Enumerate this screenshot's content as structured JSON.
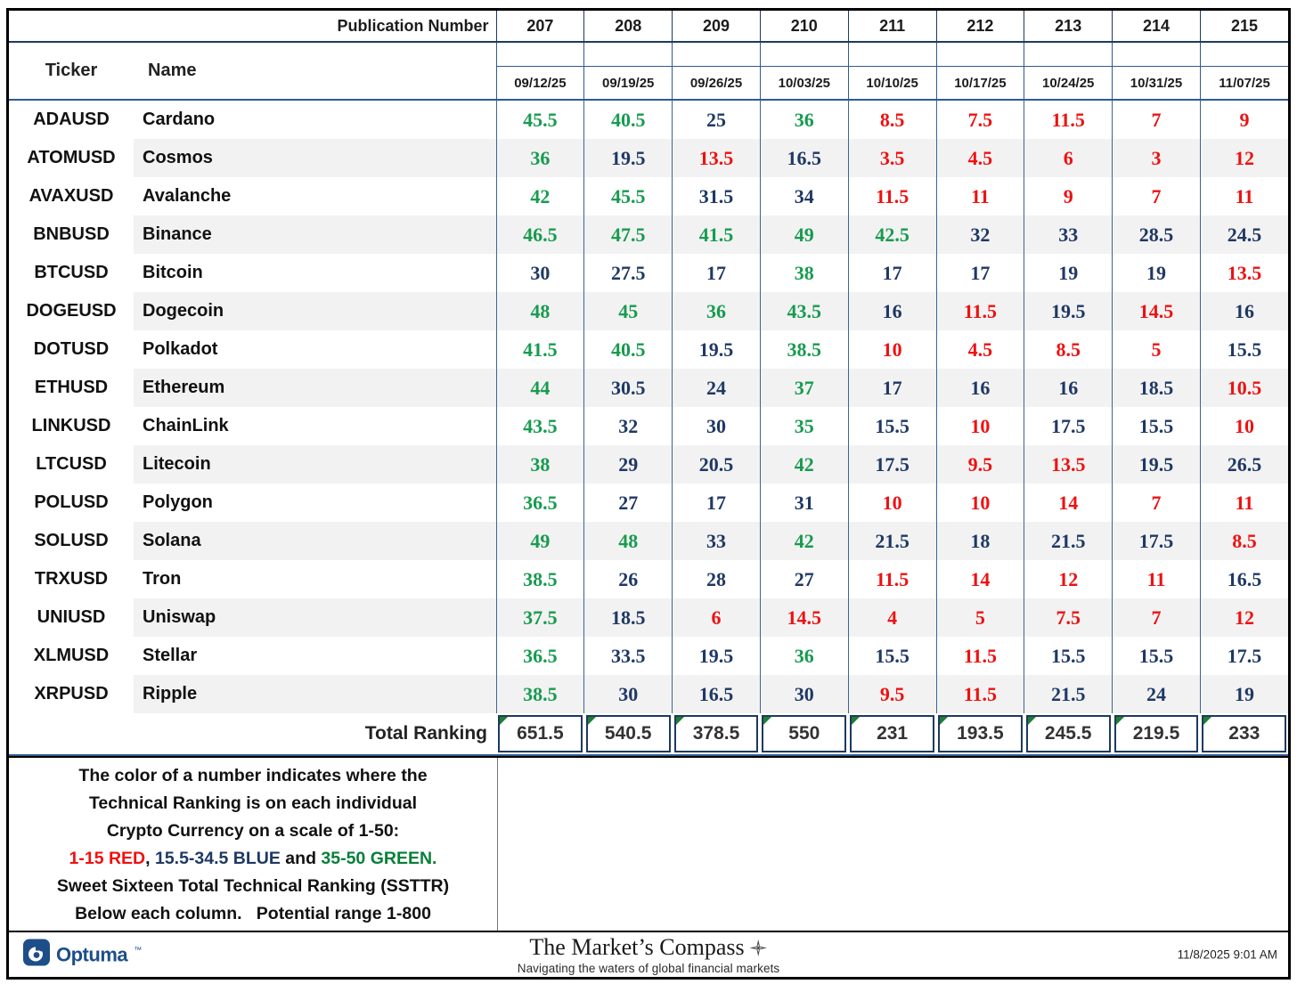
{
  "header": {
    "publication_label": "Publication Number",
    "ticker_label": "Ticker",
    "name_label": "Name",
    "publications": [
      "207",
      "208",
      "209",
      "210",
      "211",
      "212",
      "213",
      "214",
      "215"
    ],
    "dates": [
      "09/12/25",
      "09/19/25",
      "09/26/25",
      "10/03/25",
      "10/10/25",
      "10/17/25",
      "10/24/25",
      "10/31/25",
      "11/07/25"
    ]
  },
  "rows": [
    {
      "ticker": "ADAUSD",
      "name": "Cardano",
      "values": [
        45.5,
        40.5,
        25,
        36,
        8.5,
        7.5,
        11.5,
        7,
        9
      ]
    },
    {
      "ticker": "ATOMUSD",
      "name": "Cosmos",
      "values": [
        36,
        19.5,
        13.5,
        16.5,
        3.5,
        4.5,
        6,
        3,
        12
      ]
    },
    {
      "ticker": "AVAXUSD",
      "name": "Avalanche",
      "values": [
        42,
        45.5,
        31.5,
        34,
        11.5,
        11,
        9,
        7,
        11
      ]
    },
    {
      "ticker": "BNBUSD",
      "name": "Binance",
      "values": [
        46.5,
        47.5,
        41.5,
        49,
        42.5,
        32,
        33,
        28.5,
        24.5
      ]
    },
    {
      "ticker": "BTCUSD",
      "name": "Bitcoin",
      "values": [
        30,
        27.5,
        17,
        38,
        17,
        17,
        19,
        19,
        13.5
      ]
    },
    {
      "ticker": "DOGEUSD",
      "name": "Dogecoin",
      "values": [
        48,
        45,
        36,
        43.5,
        16,
        11.5,
        19.5,
        14.5,
        16
      ]
    },
    {
      "ticker": "DOTUSD",
      "name": "Polkadot",
      "values": [
        41.5,
        40.5,
        19.5,
        38.5,
        10,
        4.5,
        8.5,
        5,
        15.5
      ]
    },
    {
      "ticker": "ETHUSD",
      "name": "Ethereum",
      "values": [
        44,
        30.5,
        24,
        37,
        17,
        16,
        16,
        18.5,
        10.5
      ]
    },
    {
      "ticker": "LINKUSD",
      "name": "ChainLink",
      "values": [
        43.5,
        32,
        30,
        35,
        15.5,
        10,
        17.5,
        15.5,
        10
      ]
    },
    {
      "ticker": "LTCUSD",
      "name": "Litecoin",
      "values": [
        38,
        29,
        20.5,
        42,
        17.5,
        9.5,
        13.5,
        19.5,
        26.5
      ]
    },
    {
      "ticker": "POLUSD",
      "name": "Polygon",
      "values": [
        36.5,
        27,
        17,
        31,
        10,
        10,
        14,
        7,
        11
      ]
    },
    {
      "ticker": "SOLUSD",
      "name": "Solana",
      "values": [
        49,
        48,
        33,
        42,
        21.5,
        18,
        21.5,
        17.5,
        8.5
      ]
    },
    {
      "ticker": "TRXUSD",
      "name": "Tron",
      "values": [
        38.5,
        26,
        28,
        27,
        11.5,
        14,
        12,
        11,
        16.5
      ]
    },
    {
      "ticker": "UNIUSD",
      "name": "Uniswap",
      "values": [
        37.5,
        18.5,
        6,
        14.5,
        4,
        5,
        7.5,
        7,
        12
      ]
    },
    {
      "ticker": "XLMUSD",
      "name": "Stellar",
      "values": [
        36.5,
        33.5,
        19.5,
        36,
        15.5,
        11.5,
        15.5,
        15.5,
        17.5
      ]
    },
    {
      "ticker": "XRPUSD",
      "name": "Ripple",
      "values": [
        38.5,
        30,
        16.5,
        30,
        9.5,
        11.5,
        21.5,
        24,
        19
      ]
    }
  ],
  "total": {
    "label": "Total Ranking",
    "values": [
      "651.5",
      "540.5",
      "378.5",
      "550",
      "231",
      "193.5",
      "245.5",
      "219.5",
      "233"
    ]
  },
  "color_rules": {
    "red_max": 15,
    "blue_max": 34.5,
    "scale_min": 1,
    "scale_max": 50
  },
  "colors": {
    "red": "#ee1111",
    "blue": "#1f3864",
    "green": "#179b4f",
    "legend_green": "#067f38",
    "border_navy": "#1d3a5f",
    "column_line": "#3c6494",
    "alt_row": "#f2f2f2",
    "total_text": "#333333",
    "triangle_green": "#1e7e34",
    "brand_navy": "#1d4e89"
  },
  "legend": {
    "line1": "The color of a number indicates where the",
    "line2": "Technical Ranking is on each individual",
    "line3": "Crypto Currency on a scale of 1-50:",
    "red_text": "1-15 RED",
    "sep1": ", ",
    "blue_text": "15.5-34.5 BLUE",
    "and_text": " and ",
    "green_text": "35-50 GREEN.",
    "line5": "Sweet Sixteen Total Technical Ranking (SSTTR)",
    "line6": "Below each column.   Potential range 1-800"
  },
  "footer": {
    "brand": "Optuma",
    "brand_mark": "™",
    "title": "The Market’s Compass",
    "subtitle": "Navigating the waters of global financial markets",
    "timestamp": "11/8/2025 9:01 AM"
  }
}
